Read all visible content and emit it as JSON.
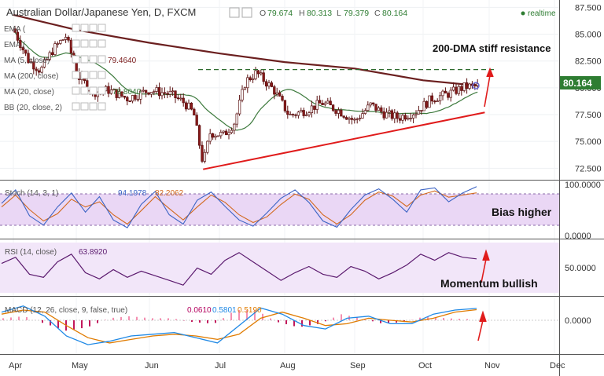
{
  "header": {
    "symbol": "Australian Dollar/Japanese Yen, D, FXCM",
    "ohlc": [
      {
        "k": "O",
        "v": "79.674"
      },
      {
        "k": "H",
        "v": "80.313"
      },
      {
        "k": "L",
        "v": "79.379"
      },
      {
        "k": "C",
        "v": "80.164"
      }
    ],
    "realtime": "realtime"
  },
  "indicators": {
    "main": [
      {
        "label": "EMA (",
        "value": "",
        "color": "#808080"
      },
      {
        "label": "EMA (",
        "value": "",
        "color": "#808080"
      },
      {
        "label": "MA (5, close)",
        "value": "79.4640",
        "color": "#7a1b1b"
      },
      {
        "label": "MA (200, close)",
        "value": "",
        "color": "#808080"
      },
      {
        "label": "MA (20, close)",
        "value": "78.8040",
        "color": "#3d7a3d"
      },
      {
        "label": "BB (20, close, 2)",
        "value": "",
        "color": "#808080"
      }
    ],
    "stoch": {
      "label": "Stoch (14, 3, 1)",
      "values": [
        "94.1978",
        "82.2062"
      ],
      "colors": [
        "#3b63c4",
        "#d2691e"
      ]
    },
    "rsi": {
      "label": "RSI (14, close)",
      "value": "63.8920",
      "color": "#5b1a6e"
    },
    "macd": {
      "label": "MACD (12, 26, close, 9, false, true)",
      "values": [
        "0.0610",
        "0.5801",
        "0.5190"
      ],
      "colors": [
        "#b3005e",
        "#1e88e5",
        "#e07b00"
      ]
    }
  },
  "annotations": {
    "resistance": "200-DMA stiff resistance",
    "bias": "Bias higher",
    "momentum": "Momentum bullish"
  },
  "last_price": "80.164",
  "colors": {
    "up": "#26a69a",
    "down": "#e53935",
    "bull_candle": "#ffffff",
    "bear_candle": "#8b1a1a",
    "trend": "#e01b1b",
    "ma200": "#6b1f1f",
    "ma20": "#3d7a3d"
  },
  "chart_data": [
    {
      "type": "candlestick",
      "title": "Australian Dollar/Japanese Yen, D, FXCM",
      "x_ticks": [
        "Apr",
        "May",
        "Jun",
        "Jul",
        "Aug",
        "Sep",
        "Oct",
        "Nov",
        "Dec"
      ],
      "y_ticks": [
        "72.500",
        "75.000",
        "77.500",
        "80.000",
        "82.500",
        "85.000",
        "87.500"
      ],
      "ylim": [
        71.5,
        87.6
      ],
      "close_path": [
        {
          "d": "Apr",
          "v": 85.5
        },
        {
          "d": "Apr 8",
          "v": 82.6
        },
        {
          "d": "Apr 14",
          "v": 81.6
        },
        {
          "d": "Apr 20",
          "v": 83.6
        },
        {
          "d": "Apr 26",
          "v": 84.8
        },
        {
          "d": "May 2",
          "v": 81.0
        },
        {
          "d": "May 8",
          "v": 79.6
        },
        {
          "d": "May 14",
          "v": 79.8
        },
        {
          "d": "May 22",
          "v": 79.0
        },
        {
          "d": "Jun 1",
          "v": 79.8
        },
        {
          "d": "Jun 10",
          "v": 79.4
        },
        {
          "d": "Jun 16",
          "v": 78.6
        },
        {
          "d": "Jun 20",
          "v": 77.6
        },
        {
          "d": "Jun 24",
          "v": 72.9
        },
        {
          "d": "Jun 27",
          "v": 75.8
        },
        {
          "d": "Jul 3",
          "v": 75.6
        },
        {
          "d": "Jul 8",
          "v": 76.8
        },
        {
          "d": "Jul 13",
          "v": 80.6
        },
        {
          "d": "Jul 18",
          "v": 81.4
        },
        {
          "d": "Jul 26",
          "v": 79.8
        },
        {
          "d": "Aug 3",
          "v": 77.4
        },
        {
          "d": "Aug 10",
          "v": 77.9
        },
        {
          "d": "Aug 17",
          "v": 78.6
        },
        {
          "d": "Aug 24",
          "v": 77.9
        },
        {
          "d": "Sep 1",
          "v": 76.9
        },
        {
          "d": "Sep 8",
          "v": 78.4
        },
        {
          "d": "Sep 14",
          "v": 77.6
        },
        {
          "d": "Sep 20",
          "v": 77.2
        },
        {
          "d": "Sep 28",
          "v": 77.8
        },
        {
          "d": "Oct 5",
          "v": 79.0
        },
        {
          "d": "Oct 12",
          "v": 79.4
        },
        {
          "d": "Oct 20",
          "v": 80.1
        },
        {
          "d": "Oct 26",
          "v": 80.164
        }
      ],
      "ma200": [
        {
          "d": "Apr",
          "v": 86.8
        },
        {
          "d": "May",
          "v": 85.4
        },
        {
          "d": "Jun",
          "v": 84.2
        },
        {
          "d": "Jul",
          "v": 83.2
        },
        {
          "d": "Aug",
          "v": 82.4
        },
        {
          "d": "Sep",
          "v": 81.8
        },
        {
          "d": "Oct",
          "v": 80.7
        },
        {
          "d": "Oct 26",
          "v": 80.2
        }
      ],
      "resistance_level": 81.7,
      "support_trend": [
        {
          "d": "Jun 24",
          "v": 72.4
        },
        {
          "d": "Oct 29",
          "v": 77.7
        }
      ]
    },
    {
      "type": "line",
      "title": "Stoch (14, 3, 1)",
      "y_ticks": [
        "0.0000",
        "100.0000"
      ],
      "ylim": [
        0,
        100
      ],
      "bands": [
        20,
        80
      ],
      "series": [
        {
          "name": "94.1978",
          "values": [
            62,
            88,
            38,
            20,
            55,
            82,
            45,
            75,
            30,
            15,
            60,
            85,
            40,
            22,
            68,
            84,
            56,
            30,
            18,
            44,
            72,
            88,
            64,
            28,
            16,
            50,
            78,
            90,
            70,
            45,
            88,
            92,
            65,
            82,
            94.2
          ]
        },
        {
          "name": "82.2062",
          "values": [
            55,
            78,
            50,
            28,
            42,
            70,
            55,
            65,
            40,
            22,
            48,
            75,
            52,
            30,
            55,
            78,
            64,
            40,
            25,
            36,
            60,
            80,
            70,
            40,
            22,
            40,
            68,
            84,
            76,
            56,
            78,
            86,
            74,
            78,
            82.2
          ]
        }
      ]
    },
    {
      "type": "line",
      "title": "RSI (14, close)",
      "y_ticks": [
        "50.0000"
      ],
      "ylim": [
        20,
        85
      ],
      "series": [
        {
          "name": "63.8920",
          "values": [
            58,
            66,
            44,
            40,
            60,
            70,
            46,
            38,
            50,
            40,
            48,
            42,
            36,
            30,
            52,
            44,
            62,
            72,
            60,
            48,
            36,
            46,
            54,
            44,
            40,
            54,
            48,
            38,
            46,
            56,
            70,
            62,
            72,
            66,
            63.9
          ]
        }
      ]
    },
    {
      "type": "line",
      "title": "MACD (12, 26, close, 9, false, true)",
      "y_ticks": [
        "0.0000"
      ],
      "ylim": [
        -1.8,
        1.0
      ],
      "series": [
        {
          "name": "0.5801",
          "values": [
            0.4,
            0.7,
            0.2,
            -0.9,
            -1.4,
            -1.2,
            -0.9,
            -0.8,
            -0.7,
            -1.0,
            -1.3,
            -0.3,
            0.6,
            0.3,
            -0.3,
            -0.5,
            0.1,
            0.2,
            -0.2,
            -0.2,
            0.3,
            0.5,
            0.58
          ]
        },
        {
          "name": "0.5190",
          "values": [
            0.3,
            0.5,
            0.4,
            -0.3,
            -1.0,
            -1.3,
            -1.1,
            -0.9,
            -0.8,
            -0.9,
            -1.1,
            -0.8,
            0.1,
            0.4,
            0.1,
            -0.3,
            -0.2,
            0.1,
            0.0,
            -0.1,
            0.1,
            0.4,
            0.52
          ]
        },
        {
          "name": "0.0610",
          "values": [
            0.1,
            0.2,
            -0.2,
            -0.6,
            -0.4,
            0.1,
            0.2,
            0.1,
            0.1,
            -0.1,
            -0.2,
            0.5,
            0.5,
            -0.1,
            -0.4,
            -0.2,
            0.3,
            0.1,
            -0.2,
            -0.1,
            0.2,
            0.1,
            0.06
          ]
        }
      ]
    }
  ]
}
